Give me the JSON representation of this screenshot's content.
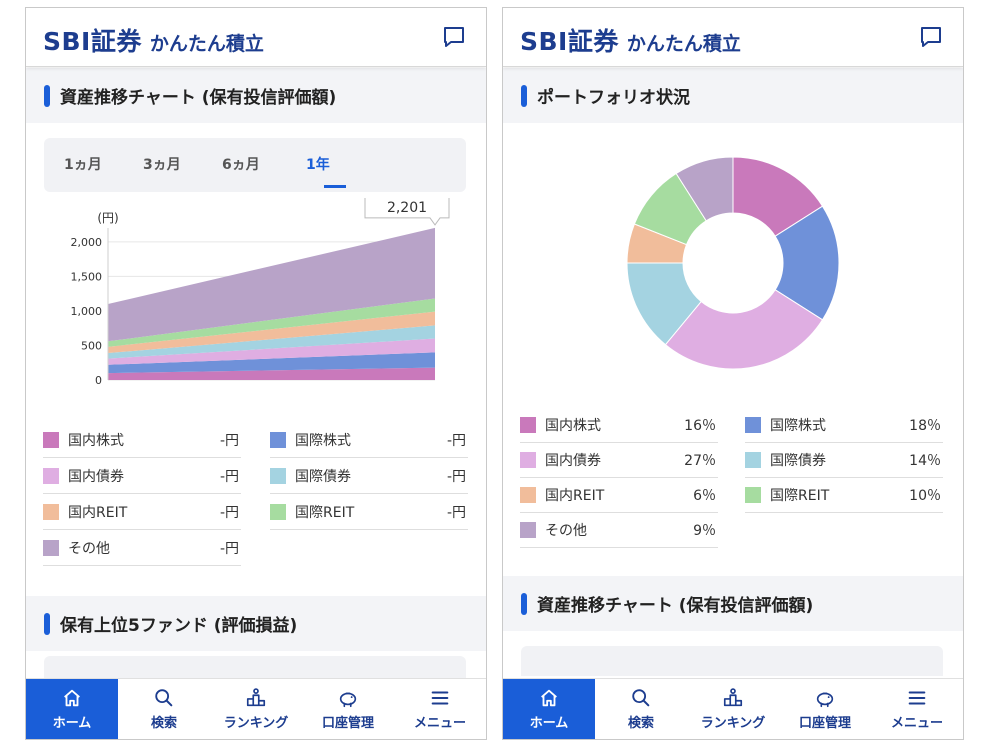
{
  "app": {
    "logo_main": "SBI証券",
    "logo_sub": "かんたん積立"
  },
  "colors": {
    "accent": "#1a5ed8",
    "brand": "#1d3d8f",
    "domestic_stock": "#c979bb",
    "intl_stock": "#6f91d9",
    "domestic_bond": "#dfaee2",
    "intl_bond": "#a4d3e1",
    "domestic_reit": "#f1bd9b",
    "intl_reit": "#a6dca0",
    "other": "#b8a3c8"
  },
  "left": {
    "section_asset_title": "資産推移チャート (保有投信評価額)",
    "tabs": [
      {
        "label": "1ヵ月",
        "active": false
      },
      {
        "label": "3ヵ月",
        "active": false
      },
      {
        "label": "6ヵ月",
        "active": false
      },
      {
        "label": "1年",
        "active": true
      }
    ],
    "legend": [
      {
        "label": "国内株式",
        "value": "-円",
        "color": "#c979bb"
      },
      {
        "label": "国際株式",
        "value": "-円",
        "color": "#6f91d9"
      },
      {
        "label": "国内債券",
        "value": "-円",
        "color": "#dfaee2"
      },
      {
        "label": "国際債券",
        "value": "-円",
        "color": "#a4d3e1"
      },
      {
        "label": "国内REIT",
        "value": "-円",
        "color": "#f1bd9b"
      },
      {
        "label": "国際REIT",
        "value": "-円",
        "color": "#a6dca0"
      },
      {
        "label": "その他",
        "value": "-円",
        "color": "#b8a3c8"
      }
    ],
    "section_top5_title": "保有上位5ファンド (評価損益)"
  },
  "right": {
    "section_portfolio_title": "ポートフォリオ状況",
    "legend": [
      {
        "label": "国内株式",
        "value": "16％",
        "color": "#c979bb"
      },
      {
        "label": "国際株式",
        "value": "18％",
        "color": "#6f91d9"
      },
      {
        "label": "国内債券",
        "value": "27％",
        "color": "#dfaee2"
      },
      {
        "label": "国際債券",
        "value": "14％",
        "color": "#a4d3e1"
      },
      {
        "label": "国内REIT",
        "value": "6％",
        "color": "#f1bd9b"
      },
      {
        "label": "国際REIT",
        "value": "10％",
        "color": "#a6dca0"
      },
      {
        "label": "その他",
        "value": "9％",
        "color": "#b8a3c8"
      }
    ],
    "section_asset_title": "資産推移チャート (保有投信評価額)"
  },
  "nav": [
    {
      "label": "ホーム",
      "icon": "home-icon",
      "active": true
    },
    {
      "label": "検索",
      "icon": "search-icon",
      "active": false
    },
    {
      "label": "ランキング",
      "icon": "ranking-icon",
      "active": false
    },
    {
      "label": "口座管理",
      "icon": "piggy-bank-icon",
      "active": false
    },
    {
      "label": "メニュー",
      "icon": "menu-icon",
      "active": false
    }
  ],
  "chart_data": [
    {
      "type": "area",
      "stacked": true,
      "ylabel": "(円)",
      "ylim": [
        0,
        2200
      ],
      "yticks": [
        "0",
        "500",
        "1,000",
        "1,500",
        "2,000"
      ],
      "x": [
        0,
        1
      ],
      "tooltip": "2,201",
      "series": [
        {
          "name": "国内株式",
          "color": "#c979bb",
          "values": [
            100,
            180
          ]
        },
        {
          "name": "国際株式",
          "color": "#6f91d9",
          "values": [
            120,
            220
          ]
        },
        {
          "name": "国内債券",
          "color": "#dfaee2",
          "values": [
            90,
            200
          ]
        },
        {
          "name": "国際債券",
          "color": "#a4d3e1",
          "values": [
            80,
            190
          ]
        },
        {
          "name": "国内REIT",
          "color": "#f1bd9b",
          "values": [
            90,
            200
          ]
        },
        {
          "name": "国際REIT",
          "color": "#a6dca0",
          "values": [
            80,
            190
          ]
        },
        {
          "name": "その他",
          "color": "#b8a3c8",
          "values": [
            540,
            1021
          ]
        }
      ]
    },
    {
      "type": "pie",
      "donut": true,
      "categories": [
        "国内株式",
        "国際株式",
        "国内債券",
        "国際債券",
        "国内REIT",
        "国際REIT",
        "その他"
      ],
      "values": [
        16,
        18,
        27,
        14,
        6,
        10,
        9
      ],
      "colors": [
        "#c979bb",
        "#6f91d9",
        "#dfaee2",
        "#a4d3e1",
        "#f1bd9b",
        "#a6dca0",
        "#b8a3c8"
      ]
    }
  ]
}
